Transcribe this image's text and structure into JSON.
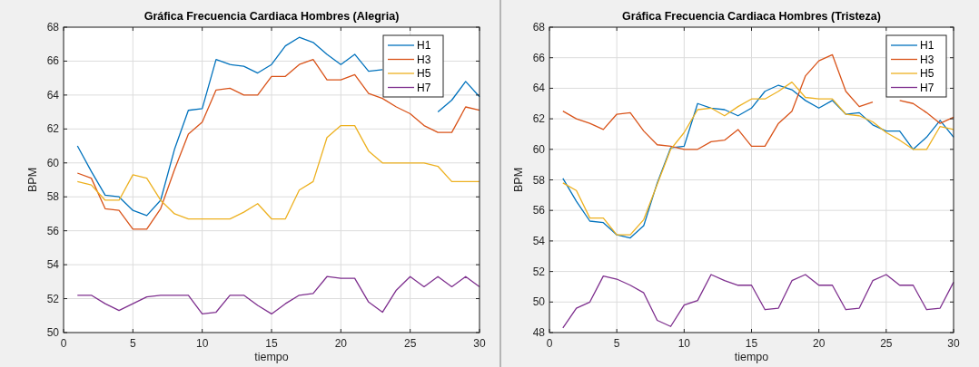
{
  "chart_data": [
    {
      "type": "line",
      "title": "Gráfica Frecuencia Cardiaca Hombres (Alegria)",
      "xlabel": "tiempo",
      "ylabel": "BPM",
      "x": [
        1,
        2,
        3,
        4,
        5,
        6,
        7,
        8,
        9,
        10,
        11,
        12,
        13,
        14,
        15,
        16,
        17,
        18,
        19,
        20,
        21,
        22,
        23,
        24,
        25,
        26,
        27,
        28,
        29,
        30
      ],
      "xlim": [
        0,
        30
      ],
      "xticks": [
        0,
        5,
        10,
        15,
        20,
        25,
        30
      ],
      "ylim": [
        50,
        68
      ],
      "yticks": [
        50,
        52,
        54,
        56,
        58,
        60,
        62,
        64,
        66,
        68
      ],
      "grid": true,
      "legend": "top right",
      "marker": "none",
      "line_style": "solid",
      "series": [
        {
          "name": "H1",
          "color": "#0072bd",
          "values": [
            61.0,
            59.5,
            58.1,
            58.0,
            57.2,
            56.9,
            57.8,
            60.8,
            63.1,
            63.2,
            66.1,
            65.8,
            65.7,
            65.3,
            65.8,
            66.9,
            67.4,
            67.1,
            66.4,
            65.8,
            66.4,
            65.4,
            65.5,
            null,
            null,
            null,
            63.0,
            63.7,
            64.8,
            63.9
          ]
        },
        {
          "name": "H3",
          "color": "#d95319",
          "values": [
            59.4,
            59.1,
            57.3,
            57.2,
            56.1,
            56.1,
            57.3,
            59.6,
            61.7,
            62.4,
            64.3,
            64.4,
            64.0,
            64.0,
            65.1,
            65.1,
            65.8,
            66.1,
            64.9,
            64.9,
            65.2,
            64.1,
            63.8,
            63.3,
            62.9,
            62.2,
            61.8,
            61.8,
            63.3,
            63.1
          ]
        },
        {
          "name": "H5",
          "color": "#edb120",
          "values": [
            58.9,
            58.7,
            57.8,
            57.8,
            59.3,
            59.1,
            57.8,
            57.0,
            56.7,
            56.7,
            56.7,
            56.7,
            57.1,
            57.6,
            56.7,
            56.7,
            58.4,
            58.9,
            61.5,
            62.2,
            62.2,
            60.7,
            60.0,
            60.0,
            60.0,
            60.0,
            59.8,
            58.9,
            58.9,
            58.9
          ]
        },
        {
          "name": "H7",
          "color": "#7e2f8e",
          "values": [
            52.2,
            52.2,
            51.7,
            51.3,
            51.7,
            52.1,
            52.2,
            52.2,
            52.2,
            51.1,
            51.2,
            52.2,
            52.2,
            51.6,
            51.1,
            51.7,
            52.2,
            52.3,
            53.3,
            53.2,
            53.2,
            51.8,
            51.2,
            52.5,
            53.3,
            52.7,
            53.3,
            52.7,
            53.3,
            52.7
          ]
        }
      ]
    },
    {
      "type": "line",
      "title": "Gráfica Frecuencia Cardiaca Hombres (Tristeza)",
      "xlabel": "tiempo",
      "ylabel": "BPM",
      "x": [
        1,
        2,
        3,
        4,
        5,
        6,
        7,
        8,
        9,
        10,
        11,
        12,
        13,
        14,
        15,
        16,
        17,
        18,
        19,
        20,
        21,
        22,
        23,
        24,
        25,
        26,
        27,
        28,
        29,
        30
      ],
      "xlim": [
        0,
        30
      ],
      "xticks": [
        0,
        5,
        10,
        15,
        20,
        25,
        30
      ],
      "ylim": [
        48,
        68
      ],
      "yticks": [
        48,
        50,
        52,
        54,
        56,
        58,
        60,
        62,
        64,
        66,
        68
      ],
      "grid": true,
      "legend": "top right",
      "marker": "none",
      "line_style": "solid",
      "series": [
        {
          "name": "H1",
          "color": "#0072bd",
          "values": [
            58.1,
            56.6,
            55.3,
            55.2,
            54.4,
            54.2,
            55.0,
            57.8,
            60.1,
            60.2,
            63.0,
            62.7,
            62.6,
            62.2,
            62.7,
            63.8,
            64.2,
            63.9,
            63.2,
            62.7,
            63.2,
            62.3,
            62.4,
            61.6,
            61.2,
            61.2,
            60.0,
            60.8,
            61.9,
            60.8
          ]
        },
        {
          "name": "H3",
          "color": "#d95319",
          "values": [
            62.5,
            62.0,
            61.7,
            61.3,
            62.3,
            62.4,
            61.2,
            60.3,
            60.2,
            60.0,
            60.0,
            60.5,
            60.6,
            61.3,
            60.2,
            60.2,
            61.7,
            62.5,
            64.8,
            65.8,
            66.2,
            63.8,
            62.8,
            63.1,
            null,
            63.2,
            63.0,
            62.4,
            61.7,
            62.1
          ]
        },
        {
          "name": "H5",
          "color": "#edb120",
          "values": [
            57.8,
            57.3,
            55.5,
            55.5,
            54.4,
            54.4,
            55.4,
            57.7,
            60.0,
            61.1,
            62.6,
            62.7,
            62.2,
            62.8,
            63.3,
            63.3,
            63.8,
            64.4,
            63.4,
            63.3,
            63.3,
            62.3,
            62.2,
            61.8,
            61.1,
            60.6,
            60.0,
            60.0,
            61.5,
            61.3
          ]
        },
        {
          "name": "H7",
          "color": "#7e2f8e",
          "values": [
            48.3,
            49.6,
            50.0,
            51.7,
            51.5,
            51.1,
            50.6,
            48.8,
            48.4,
            49.8,
            50.1,
            51.8,
            51.4,
            51.1,
            51.1,
            49.5,
            49.6,
            51.4,
            51.8,
            51.1,
            51.1,
            49.5,
            49.6,
            51.4,
            51.8,
            51.1,
            51.1,
            49.5,
            49.6,
            51.3
          ]
        }
      ]
    }
  ]
}
